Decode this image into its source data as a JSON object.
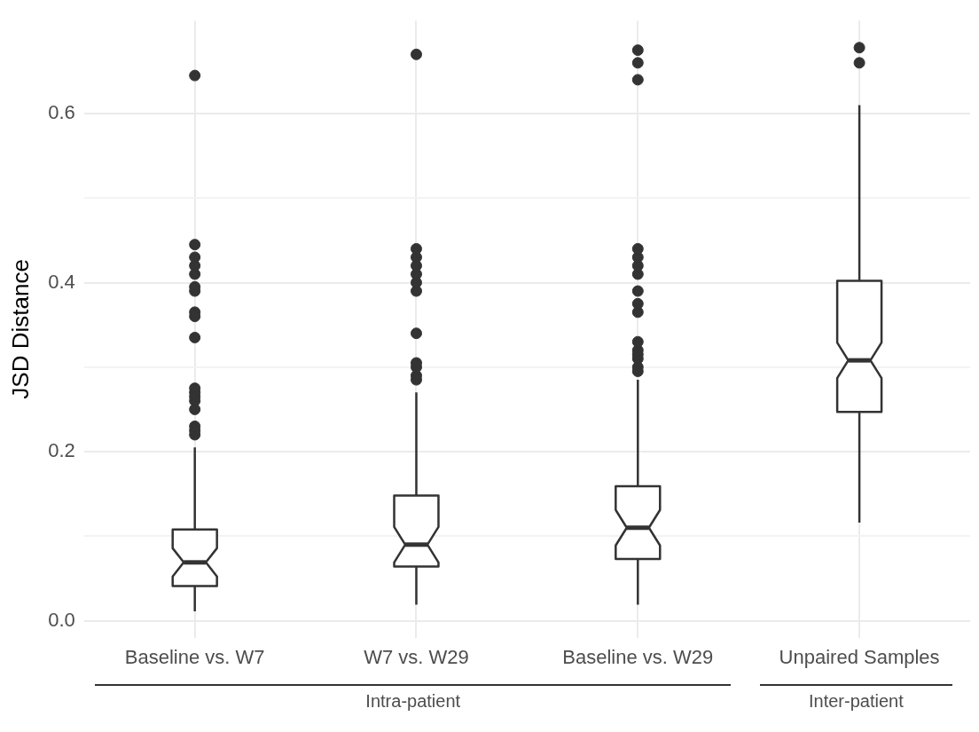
{
  "chart_data": {
    "type": "box",
    "ylabel": "JSD Distance",
    "categories": [
      "Baseline vs. W7",
      "W7 vs. W29",
      "Baseline vs. W29",
      "Unpaired Samples"
    ],
    "series": [
      {
        "color": "#333333",
        "boxes": [
          {
            "low": 0.011,
            "q1": 0.041,
            "median": 0.069,
            "q3": 0.108,
            "high": 0.205,
            "outliers": [
              0.22,
              0.225,
              0.23,
              0.25,
              0.26,
              0.265,
              0.27,
              0.275,
              0.335,
              0.36,
              0.365,
              0.39,
              0.395,
              0.41,
              0.42,
              0.43,
              0.445,
              0.645
            ]
          },
          {
            "low": 0.019,
            "q1": 0.064,
            "median": 0.09,
            "q3": 0.148,
            "high": 0.27,
            "outliers": [
              0.285,
              0.29,
              0.3,
              0.305,
              0.34,
              0.39,
              0.4,
              0.41,
              0.42,
              0.43,
              0.44,
              0.67
            ]
          },
          {
            "low": 0.019,
            "q1": 0.073,
            "median": 0.11,
            "q3": 0.159,
            "high": 0.285,
            "outliers": [
              0.295,
              0.3,
              0.31,
              0.315,
              0.32,
              0.33,
              0.365,
              0.375,
              0.39,
              0.41,
              0.42,
              0.43,
              0.44,
              0.64,
              0.66,
              0.675
            ]
          },
          {
            "low": 0.116,
            "q1": 0.247,
            "median": 0.308,
            "q3": 0.402,
            "high": 0.61,
            "outliers": [
              0.66,
              0.678
            ]
          }
        ]
      }
    ],
    "ylim": [
      -0.02,
      0.71
    ],
    "yticks": [
      {
        "value": 0,
        "label": "0.0"
      },
      {
        "value": 0.1,
        "label": null
      },
      {
        "value": 0.2,
        "label": "0.2"
      },
      {
        "value": 0.3,
        "label": null
      },
      {
        "value": 0.4,
        "label": "0.4"
      },
      {
        "value": 0.5,
        "label": null
      },
      {
        "value": 0.6,
        "label": "0.6"
      }
    ],
    "grid": true,
    "legend": false,
    "annotations": [
      "Intra-patient",
      "Inter-patient"
    ]
  }
}
